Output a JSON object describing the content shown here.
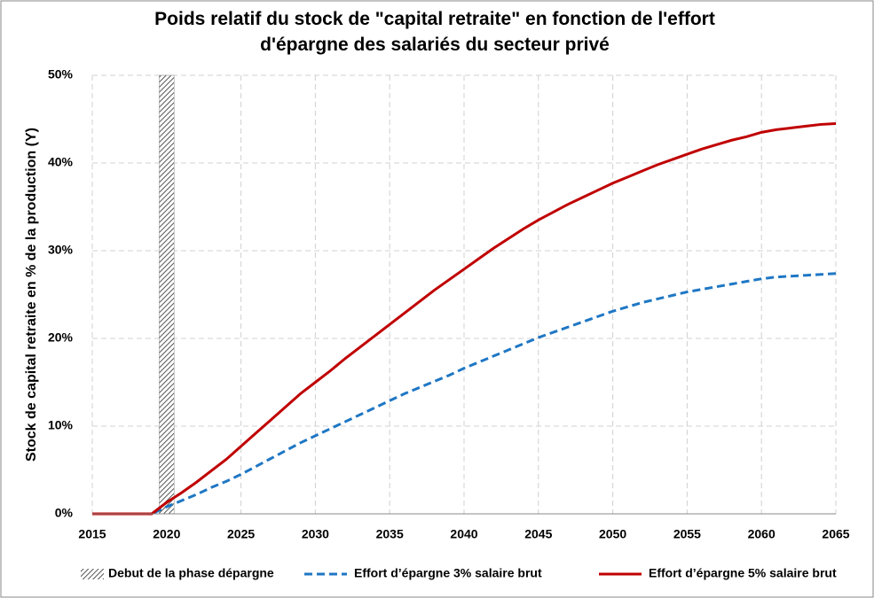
{
  "chart_data": {
    "type": "line",
    "title": [
      "Poids relatif du stock de \"capital retraite\" en fonction de l'effort",
      "d'épargne des salariés du secteur privé"
    ],
    "ylabel": "Stock de capital retraite en % de la production (Y)",
    "band": {
      "name": "Debut de la phase dépargne",
      "x": [
        2019.5,
        2020.5
      ]
    },
    "x": [
      2015,
      2016,
      2017,
      2018,
      2019,
      2020,
      2021,
      2022,
      2023,
      2024,
      2025,
      2026,
      2027,
      2028,
      2029,
      2030,
      2031,
      2032,
      2033,
      2034,
      2035,
      2036,
      2037,
      2038,
      2039,
      2040,
      2041,
      2042,
      2043,
      2044,
      2045,
      2046,
      2047,
      2048,
      2049,
      2050,
      2051,
      2052,
      2053,
      2054,
      2055,
      2056,
      2057,
      2058,
      2059,
      2060,
      2061,
      2062,
      2063,
      2064,
      2065
    ],
    "series": [
      {
        "name": "Effort d’épargne 3% salaire brut",
        "color": "#1f77c4",
        "dash": true,
        "values": [
          0,
          0,
          0,
          0,
          0,
          0.8,
          1.5,
          2.2,
          3.0,
          3.7,
          4.5,
          5.4,
          6.3,
          7.2,
          8.1,
          8.9,
          9.7,
          10.5,
          11.3,
          12.1,
          12.9,
          13.7,
          14.4,
          15.1,
          15.8,
          16.6,
          17.3,
          18.0,
          18.7,
          19.4,
          20.1,
          20.7,
          21.3,
          21.9,
          22.5,
          23.1,
          23.6,
          24.1,
          24.5,
          24.9,
          25.3,
          25.6,
          25.9,
          26.2,
          26.5,
          26.8,
          27.0,
          27.1,
          27.2,
          27.3,
          27.4
        ]
      },
      {
        "name": "Effort d’épargne 5% salaire brut",
        "color": "#c00000",
        "dash": false,
        "values": [
          0,
          0,
          0,
          0,
          0,
          1.3,
          2.4,
          3.6,
          4.9,
          6.2,
          7.7,
          9.2,
          10.7,
          12.2,
          13.7,
          15.0,
          16.3,
          17.7,
          19.0,
          20.3,
          21.6,
          22.9,
          24.2,
          25.5,
          26.7,
          27.9,
          29.1,
          30.3,
          31.4,
          32.5,
          33.5,
          34.4,
          35.3,
          36.1,
          36.9,
          37.7,
          38.4,
          39.1,
          39.8,
          40.4,
          41.0,
          41.6,
          42.1,
          42.6,
          43.0,
          43.5,
          43.8,
          44.0,
          44.2,
          44.4,
          44.5
        ]
      }
    ],
    "xlim": [
      2015,
      2065
    ],
    "xticks": [
      2015,
      2020,
      2025,
      2030,
      2035,
      2040,
      2045,
      2050,
      2055,
      2060,
      2065
    ],
    "ylim": [
      0,
      50
    ],
    "yticks": [
      {
        "value": 0,
        "label": "0%"
      },
      {
        "value": 10,
        "label": "10%"
      },
      {
        "value": 20,
        "label": "20%"
      },
      {
        "value": 30,
        "label": "30%"
      },
      {
        "value": 40,
        "label": "40%"
      },
      {
        "value": 50,
        "label": "50%"
      }
    ],
    "grid": true,
    "legend": "bottom"
  }
}
